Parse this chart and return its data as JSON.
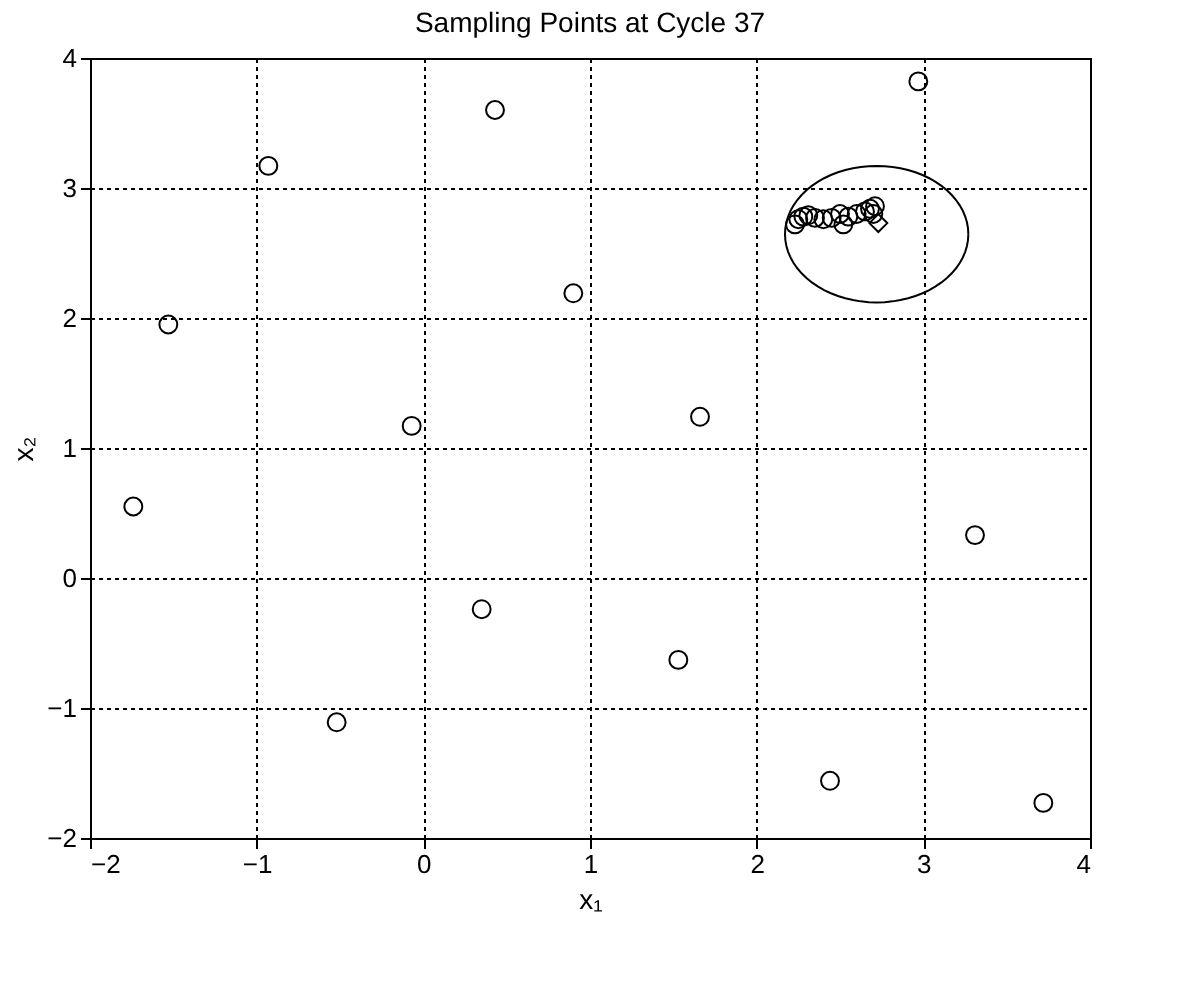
{
  "chart_data": {
    "type": "scatter",
    "title": "Sampling Points at Cycle 37",
    "xlabel": "x₁",
    "ylabel": "x₂",
    "xlim": [
      -2,
      4
    ],
    "ylim": [
      -2,
      4
    ],
    "xticks": [
      -2,
      -1,
      0,
      1,
      2,
      3,
      4
    ],
    "yticks": [
      -2,
      -1,
      0,
      1,
      2,
      3,
      4
    ],
    "grid": true,
    "legend": false,
    "series": [
      {
        "marker": "circle",
        "color": "#000000",
        "x": [
          -1.74,
          -1.53,
          -0.93,
          -0.52,
          -0.07,
          0.43,
          0.35,
          0.9,
          1.66,
          1.53,
          2.97,
          3.31,
          2.44,
          3.72,
          2.23,
          2.25,
          2.28,
          2.31,
          2.35,
          2.4,
          2.45,
          2.5,
          2.52,
          2.55,
          2.6,
          2.65,
          2.68,
          2.71,
          2.7
        ],
        "values": [
          0.55,
          1.95,
          3.17,
          -1.11,
          1.17,
          3.6,
          -0.24,
          2.19,
          1.24,
          -0.63,
          3.82,
          0.33,
          -1.56,
          -1.73,
          2.72,
          2.76,
          2.78,
          2.79,
          2.77,
          2.76,
          2.77,
          2.8,
          2.72,
          2.78,
          2.8,
          2.82,
          2.84,
          2.86,
          2.8
        ]
      },
      {
        "marker": "diamond",
        "color": "#000000",
        "x": [
          2.73
        ],
        "values": [
          2.73
        ]
      }
    ]
  }
}
